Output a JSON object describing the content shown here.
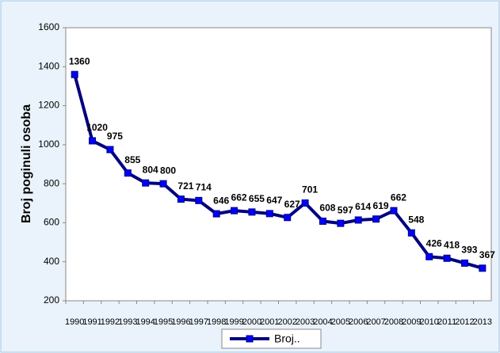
{
  "chart_data": {
    "type": "line",
    "ylabel": "Broj poginuli osoba",
    "categories": [
      "1990",
      "1991",
      "1992",
      "1993",
      "1994",
      "1995",
      "1996",
      "1997",
      "1998",
      "1999",
      "2000",
      "2001",
      "2002",
      "2003",
      "2004",
      "2005",
      "2006",
      "2007",
      "2008",
      "2009",
      "2010",
      "2011",
      "2012",
      "2013"
    ],
    "series": [
      {
        "name": "Broj..",
        "color": "#000080",
        "marker_color": "#0000ff",
        "values": [
          1360,
          1020,
          975,
          855,
          804,
          800,
          721,
          714,
          646,
          662,
          655,
          647,
          627,
          701,
          608,
          597,
          614,
          619,
          662,
          548,
          426,
          418,
          393,
          367
        ]
      }
    ],
    "ylim": [
      200,
      1600
    ],
    "yticks": [
      200,
      400,
      600,
      800,
      1000,
      1200,
      1400,
      1600
    ],
    "legend": "bottom"
  }
}
